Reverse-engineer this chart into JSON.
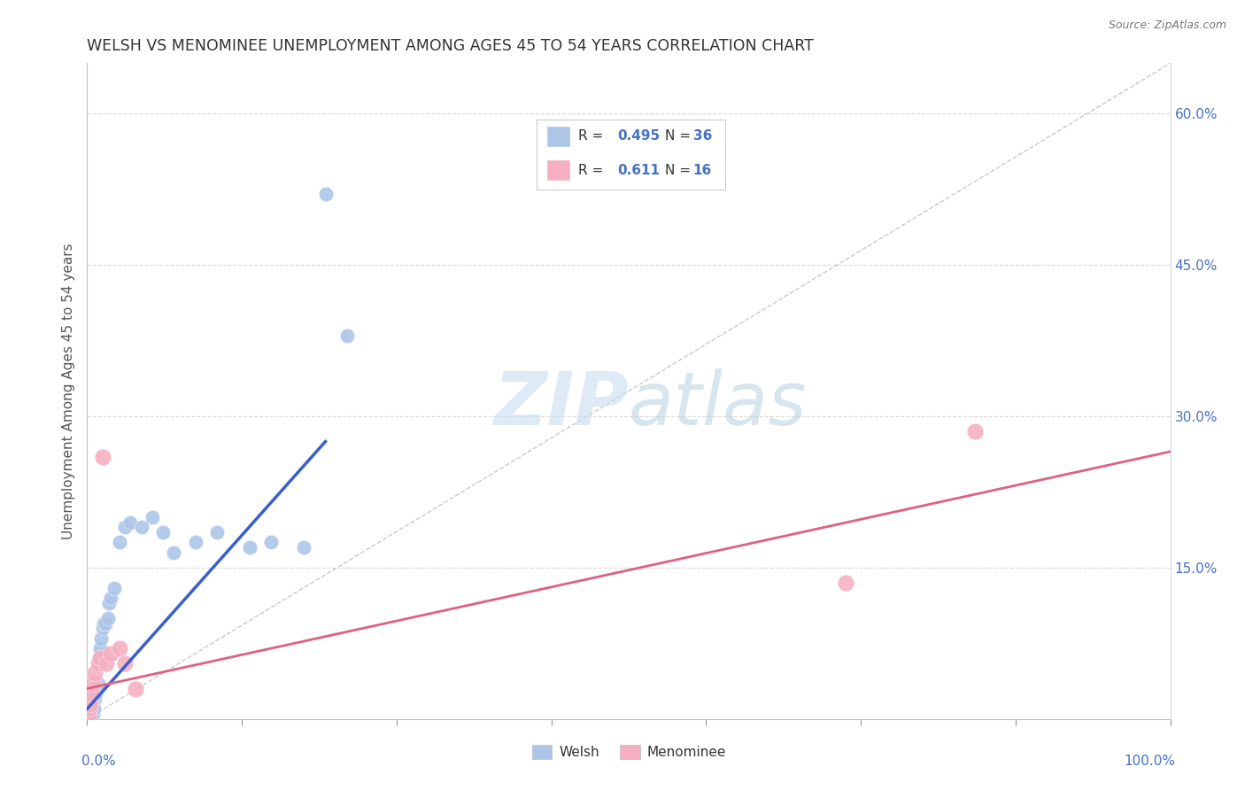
{
  "title": "WELSH VS MENOMINEE UNEMPLOYMENT AMONG AGES 45 TO 54 YEARS CORRELATION CHART",
  "source": "Source: ZipAtlas.com",
  "ylabel": "Unemployment Among Ages 45 to 54 years",
  "xlim": [
    0,
    1.0
  ],
  "ylim": [
    0,
    0.65
  ],
  "welsh_R": 0.495,
  "welsh_N": 36,
  "menominee_R": 0.611,
  "menominee_N": 16,
  "welsh_color": "#adc6e8",
  "menominee_color": "#f5afc0",
  "welsh_line_color": "#3a5fcd",
  "menominee_line_color": "#e06080",
  "ref_line_color": "#bbbbbb",
  "legend_text_color": "#4472c4",
  "background_color": "#ffffff",
  "welsh_x": [
    0.001,
    0.002,
    0.003,
    0.003,
    0.004,
    0.005,
    0.005,
    0.006,
    0.007,
    0.008,
    0.009,
    0.01,
    0.011,
    0.012,
    0.013,
    0.014,
    0.015,
    0.017,
    0.019,
    0.02,
    0.022,
    0.025,
    0.03,
    0.035,
    0.04,
    0.05,
    0.06,
    0.07,
    0.08,
    0.1,
    0.12,
    0.15,
    0.17,
    0.2,
    0.22,
    0.24
  ],
  "welsh_y": [
    0.005,
    0.01,
    0.008,
    0.015,
    0.01,
    0.005,
    0.012,
    0.01,
    0.02,
    0.025,
    0.03,
    0.035,
    0.06,
    0.07,
    0.08,
    0.09,
    0.095,
    0.095,
    0.1,
    0.115,
    0.12,
    0.13,
    0.175,
    0.19,
    0.195,
    0.19,
    0.2,
    0.185,
    0.165,
    0.175,
    0.185,
    0.17,
    0.175,
    0.17,
    0.52,
    0.38
  ],
  "menominee_x": [
    0.001,
    0.002,
    0.003,
    0.004,
    0.005,
    0.007,
    0.01,
    0.012,
    0.014,
    0.018,
    0.022,
    0.03,
    0.035,
    0.045,
    0.7,
    0.82
  ],
  "menominee_y": [
    0.005,
    0.01,
    0.015,
    0.025,
    0.035,
    0.045,
    0.055,
    0.06,
    0.26,
    0.055,
    0.065,
    0.07,
    0.055,
    0.03,
    0.135,
    0.285
  ],
  "welsh_line_x": [
    0.0,
    0.22
  ],
  "welsh_line_y": [
    0.01,
    0.275
  ],
  "menominee_line_x": [
    0.0,
    1.0
  ],
  "menominee_line_y": [
    0.03,
    0.265
  ]
}
